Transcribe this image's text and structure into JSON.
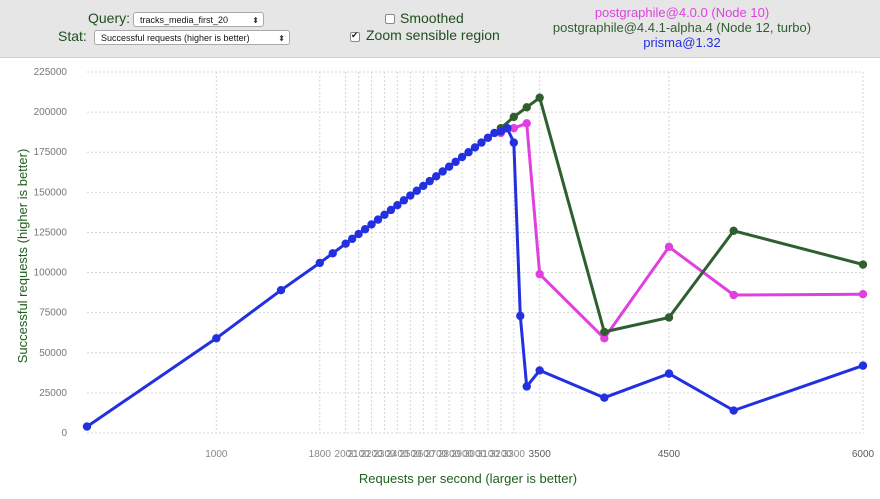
{
  "controls": {
    "query_label": "Query:",
    "query_value": "tracks_media_first_20",
    "stat_label": "Stat:",
    "stat_value": "Successful requests (higher is better)",
    "smoothed_label": "Smoothed",
    "smoothed_checked": false,
    "zoom_label": "Zoom sensible region",
    "zoom_checked": true
  },
  "legend": [
    {
      "name": "postgraphile@4.0.0 (Node 10)",
      "color": "#e040e0"
    },
    {
      "name": "postgraphile@4.4.1-alpha.4 (Node 12, turbo)",
      "color": "#2f5f2f"
    },
    {
      "name": "prisma@1.32",
      "color": "#2230e0"
    }
  ],
  "chart_data": {
    "type": "line",
    "xlabel": "Requests per second (larger is better)",
    "ylabel": "Successful requests (higher is better)",
    "xlim": [
      0,
      6000
    ],
    "ylim": [
      0,
      225000
    ],
    "grid": true,
    "yticks": [
      0,
      25000,
      50000,
      75000,
      100000,
      125000,
      150000,
      175000,
      200000,
      225000
    ],
    "xticks_labeled": [
      1000,
      1800,
      2000,
      2100,
      2200,
      2300,
      2400,
      2500,
      2600,
      2700,
      2800,
      2900,
      3000,
      3100,
      3200,
      3300,
      3500,
      4500,
      6000
    ],
    "xticks_labels": [
      "1000",
      "1800",
      "2000",
      "2100",
      "2200",
      "2300",
      "2400",
      "2500",
      "2600",
      "2700",
      "2800",
      "2900",
      "3000",
      "3100",
      "3200",
      "3300",
      "3500",
      "4500",
      "6000"
    ],
    "xtick_colors": {
      "3500": "#5a5a5a",
      "4500": "#5a5a5a",
      "6000": "#5a5a5a"
    },
    "series": [
      {
        "name": "postgraphile@4.0.0 (Node 10)",
        "color": "#e040e0",
        "x": [
          3200,
          3300,
          3400,
          3500,
          4000,
          4500,
          5000,
          6000
        ],
        "y": [
          187000,
          190000,
          193000,
          99000,
          59000,
          116000,
          86000,
          86500
        ]
      },
      {
        "name": "postgraphile@4.4.1-alpha.4 (Node 12, turbo)",
        "color": "#2f5f2f",
        "x": [
          3200,
          3300,
          3400,
          3500,
          4000,
          4500,
          5000,
          6000
        ],
        "y": [
          190000,
          197000,
          203000,
          209000,
          63000,
          72000,
          126000,
          105000
        ]
      },
      {
        "name": "prisma@1.32",
        "color": "#2230e0",
        "x": [
          0,
          1000,
          1500,
          1800,
          1900,
          2000,
          2050,
          2100,
          2150,
          2200,
          2250,
          2300,
          2350,
          2400,
          2450,
          2500,
          2550,
          2600,
          2650,
          2700,
          2750,
          2800,
          2850,
          2900,
          2950,
          3000,
          3050,
          3100,
          3150,
          3200,
          3250,
          3300,
          3350,
          3400,
          3500,
          4000,
          4500,
          5000,
          6000
        ],
        "y": [
          4000,
          59000,
          89000,
          106000,
          112000,
          118000,
          121000,
          124000,
          127000,
          130000,
          133000,
          136000,
          139000,
          142000,
          145000,
          148000,
          151000,
          154000,
          157000,
          160000,
          163000,
          166000,
          169000,
          172000,
          175000,
          178000,
          181000,
          184000,
          187000,
          188000,
          190000,
          181000,
          73000,
          29000,
          39000,
          22000,
          37000,
          14000,
          42000
        ]
      }
    ]
  }
}
